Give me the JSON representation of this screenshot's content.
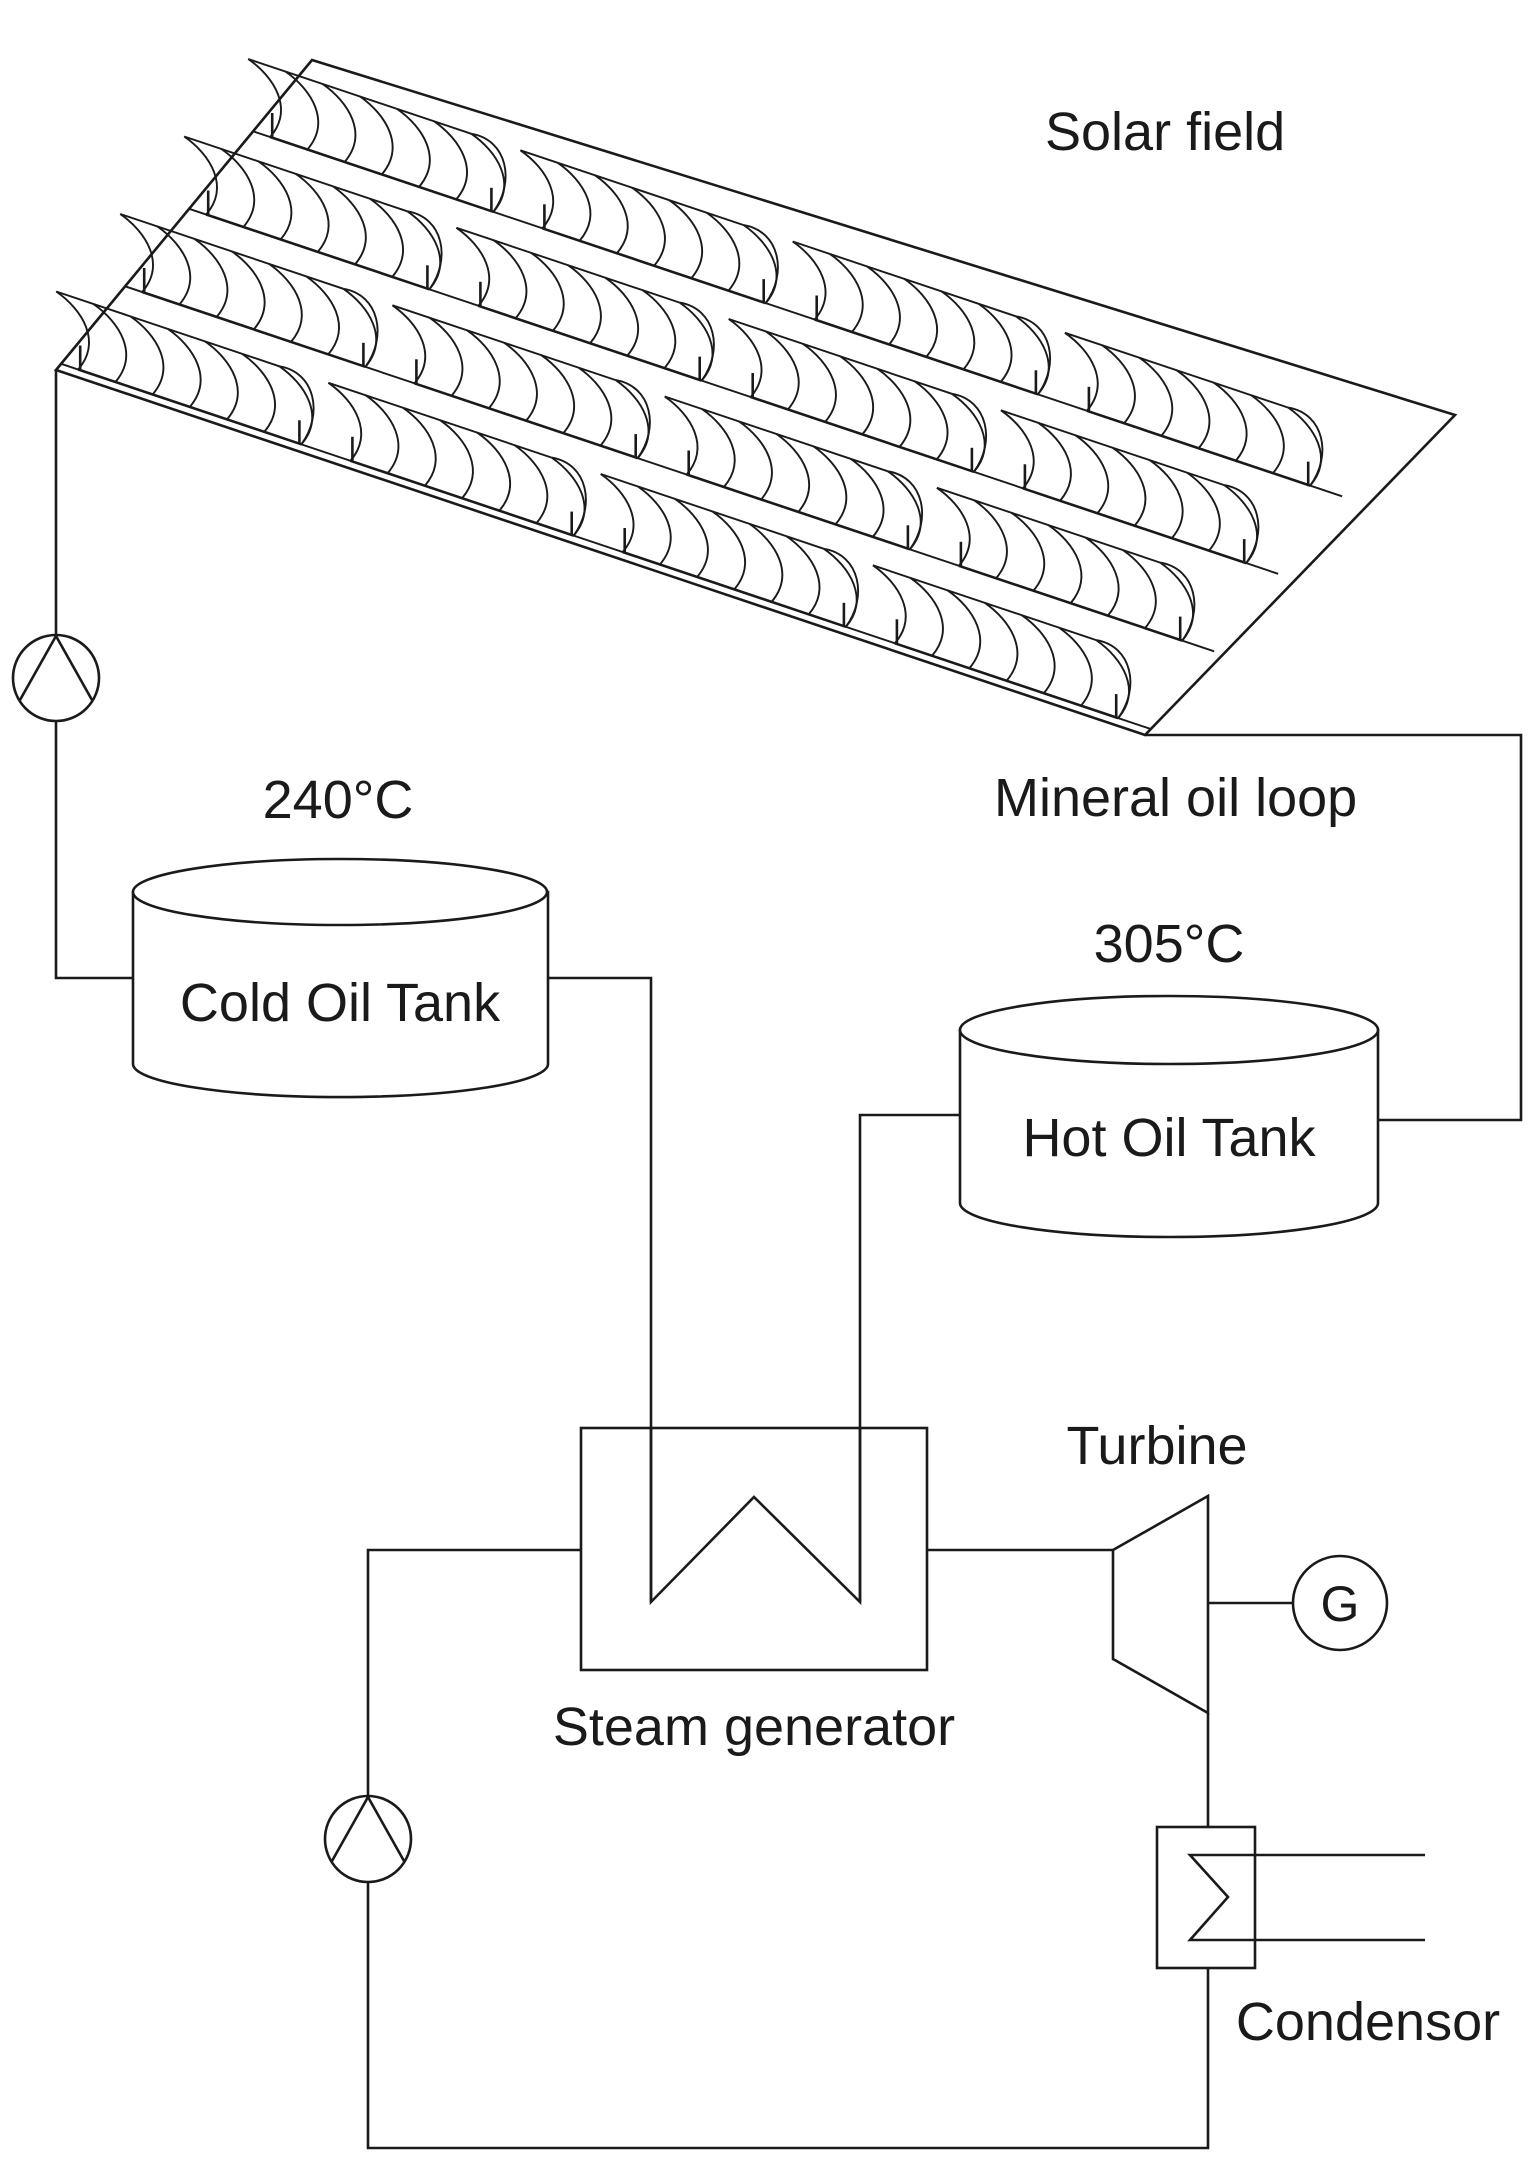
{
  "labels": {
    "solar_field": "Solar field",
    "mineral_oil_loop": "Mineral oil loop",
    "cold_temp": "240°C",
    "hot_temp": "305°C",
    "cold_tank": "Cold Oil Tank",
    "hot_tank": "Hot Oil Tank",
    "steam_generator": "Steam generator",
    "turbine": "Turbine",
    "generator": "G",
    "condensor": "Condensor"
  },
  "solar_field": {
    "rows": 4,
    "collectors_per_row": 4,
    "mirror_arcs_per_collector": 6
  }
}
